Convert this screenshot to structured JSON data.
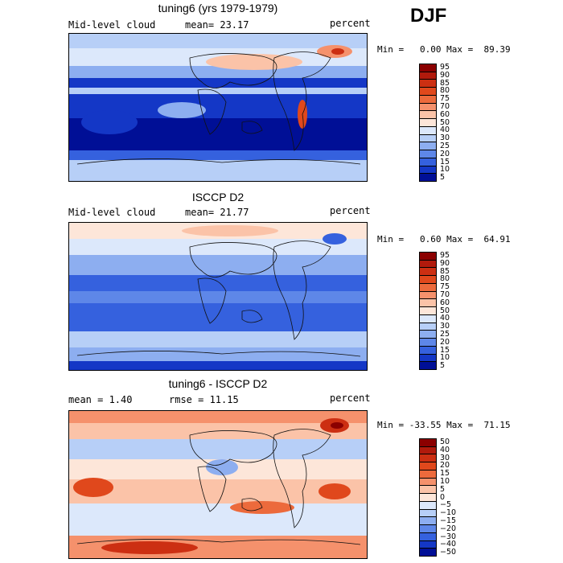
{
  "season": "DJF",
  "panels": [
    {
      "title": "tuning6 (yrs 1979-1979)",
      "left_label": "Mid-level cloud",
      "center_label": "mean=  23.17",
      "right_label": "percent",
      "minmax": "Min =   0.00 Max =  89.39",
      "colorbar": {
        "labels": [
          "95",
          "90",
          "85",
          "80",
          "75",
          "70",
          "60",
          "50",
          "40",
          "30",
          "25",
          "20",
          "15",
          "10",
          "5"
        ],
        "colors": [
          "#8b0000",
          "#b11a0c",
          "#cc2f12",
          "#e0481c",
          "#ec6a3c",
          "#f5916c",
          "#fbc3a8",
          "#fde6d9",
          "#dce8fb",
          "#b7cff7",
          "#8daef0",
          "#5e87e8",
          "#3561de",
          "#1437c6",
          "#000f96"
        ]
      }
    },
    {
      "title": "ISCCP D2",
      "left_label": "Mid-level cloud",
      "center_label": "mean=  21.77",
      "right_label": "percent",
      "minmax": "Min =   0.60 Max =  64.91",
      "colorbar": {
        "labels": [
          "95",
          "90",
          "85",
          "80",
          "75",
          "70",
          "60",
          "50",
          "40",
          "30",
          "25",
          "20",
          "15",
          "10",
          "5"
        ],
        "colors": [
          "#8b0000",
          "#b11a0c",
          "#cc2f12",
          "#e0481c",
          "#ec6a3c",
          "#f5916c",
          "#fbc3a8",
          "#fde6d9",
          "#dce8fb",
          "#b7cff7",
          "#8daef0",
          "#5e87e8",
          "#3561de",
          "#1437c6",
          "#000f96"
        ]
      }
    },
    {
      "title": "tuning6 - ISCCP D2",
      "left_label": "mean =    1.40",
      "center_label": "rmse =  11.15",
      "right_label": "percent",
      "minmax": "Min = -33.55 Max =  71.15",
      "colorbar": {
        "labels": [
          "50",
          "40",
          "30",
          "20",
          "15",
          "10",
          "5",
          "0",
          "−5",
          "−10",
          "−15",
          "−20",
          "−30",
          "−40",
          "−50"
        ],
        "colors": [
          "#8b0000",
          "#b11a0c",
          "#cc2f12",
          "#e0481c",
          "#ec6a3c",
          "#f5916c",
          "#fbc3a8",
          "#fde6d9",
          "#dce8fb",
          "#b7cff7",
          "#8daef0",
          "#5e87e8",
          "#3561de",
          "#1437c6",
          "#000f96"
        ]
      }
    }
  ]
}
